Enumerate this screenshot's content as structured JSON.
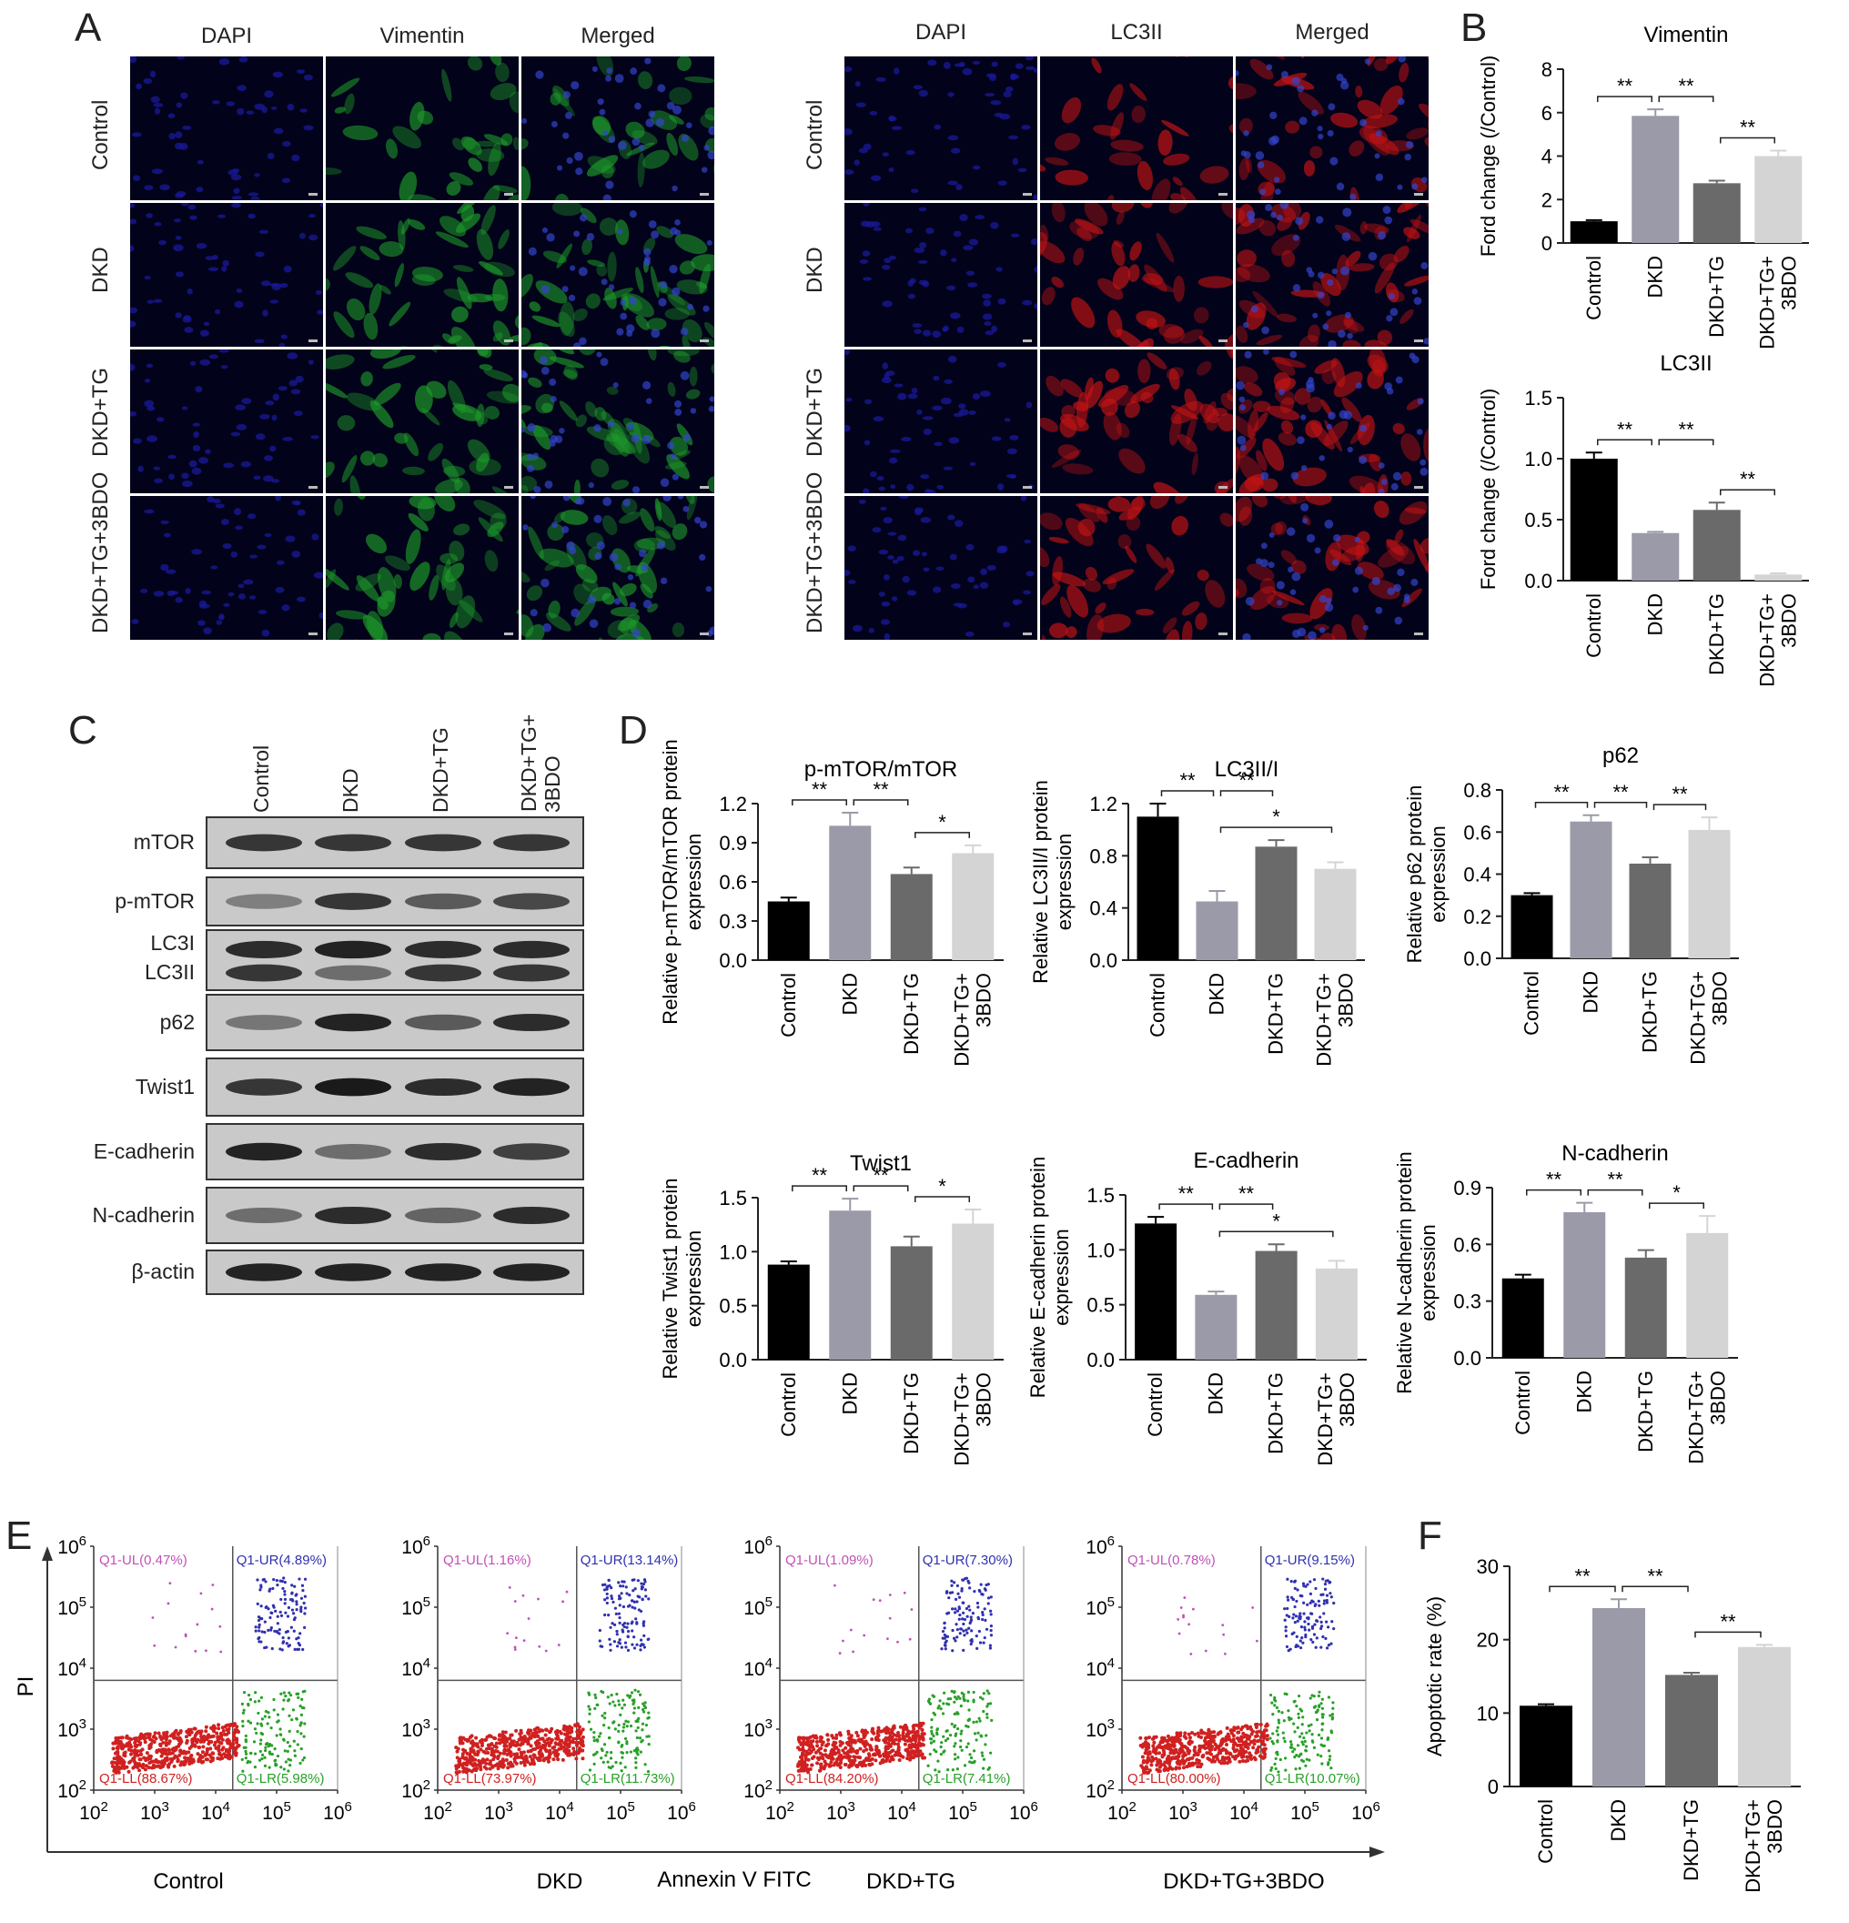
{
  "panels": {
    "A": "A",
    "B": "B",
    "C": "C",
    "D": "D",
    "E": "E",
    "F": "F"
  },
  "panelA": {
    "left_columns": [
      "DAPI",
      "Vimentin",
      "Merged"
    ],
    "right_columns": [
      "DAPI",
      "LC3II",
      "Merged"
    ],
    "rows": [
      "Control",
      "DKD",
      "DKD+TG",
      "DKD+TG+3BDO"
    ],
    "colors": {
      "dapi": "#1a1a9a",
      "vimentin": "#1e9a2a",
      "lc3": "#c41414"
    }
  },
  "panelC": {
    "columns": [
      "Control",
      "DKD",
      "DKD+TG",
      "DKD+TG+\n3BDO"
    ],
    "col_line1": [
      "Control",
      "DKD",
      "DKD+TG",
      "DKD+TG+"
    ],
    "col_line2": [
      "",
      "",
      "",
      "3BDO"
    ],
    "bands": [
      "mTOR",
      "p-mTOR",
      "LC3I",
      "LC3II",
      "p62",
      "Twist1",
      "E-cadherin",
      "N-cadherin",
      "β-actin"
    ]
  },
  "panelE": {
    "plots": [
      {
        "name": "Control",
        "UL": "Q1-UL(0.47%)",
        "UR": "Q1-UR(4.89%)",
        "LL": "Q1-LL(88.67%)",
        "LR": "Q1-LR(5.98%)"
      },
      {
        "name": "DKD",
        "UL": "Q1-UL(1.16%)",
        "UR": "Q1-UR(13.14%)",
        "LL": "Q1-LL(73.97%)",
        "LR": "Q1-LR(11.73%)"
      },
      {
        "name": "DKD+TG",
        "UL": "Q1-UL(1.09%)",
        "UR": "Q1-UR(7.30%)",
        "LL": "Q1-LL(84.20%)",
        "LR": "Q1-LR(7.41%)"
      },
      {
        "name": "DKD+TG+3BDO",
        "UL": "Q1-UL(0.78%)",
        "UR": "Q1-UR(9.15%)",
        "LL": "Q1-LL(80.00%)",
        "LR": "Q1-LR(10.07%)"
      }
    ],
    "ylabel": "PI",
    "xlabel": "Annexin V FITC",
    "tick_base": "10",
    "y_exps": [
      "6",
      "5",
      "4",
      "3",
      "2"
    ],
    "x_exps": [
      "2",
      "3",
      "4",
      "5",
      "6"
    ],
    "colors": {
      "UL": "#c050b8",
      "UR": "#3030b0",
      "LL": "#d02020",
      "LR": "#28a028"
    }
  },
  "chart_data": [
    {
      "id": "B1",
      "type": "bar",
      "title": "Vimentin",
      "ylabel": "Ford change (/Control)",
      "categories": [
        "Control",
        "DKD",
        "DKD+TG",
        "DKD+TG+\n3BDO"
      ],
      "values": [
        1.0,
        5.85,
        2.75,
        4.0
      ],
      "errors": [
        0.05,
        0.3,
        0.12,
        0.25
      ],
      "ylim": [
        0,
        8
      ],
      "yticks": [
        "0",
        "2",
        "4",
        "6",
        "8"
      ],
      "sig": [
        {
          "from": 0,
          "to": 1,
          "label": "**"
        },
        {
          "from": 1,
          "to": 2,
          "label": "**"
        },
        {
          "from": 2,
          "to": 3,
          "label": "**"
        }
      ]
    },
    {
      "id": "B2",
      "type": "bar",
      "title": "LC3II",
      "ylabel": "Ford change (/Control)",
      "categories": [
        "Control",
        "DKD",
        "DKD+TG",
        "DKD+TG+\n3BDO"
      ],
      "values": [
        1.0,
        0.39,
        0.58,
        0.05
      ],
      "errors": [
        0.05,
        0.01,
        0.06,
        0.01
      ],
      "ylim": [
        0,
        1.5
      ],
      "yticks": [
        "0.0",
        "0.5",
        "1.0",
        "1.5"
      ],
      "sig": [
        {
          "from": 0,
          "to": 1,
          "label": "**"
        },
        {
          "from": 1,
          "to": 2,
          "label": "**"
        },
        {
          "from": 2,
          "to": 3,
          "label": "**"
        }
      ]
    },
    {
      "id": "D1",
      "type": "bar",
      "title": "p-mTOR/mTOR",
      "ylabel": "Relative p-mTOR/mTOR protein\nexpression",
      "categories": [
        "Control",
        "DKD",
        "DKD+TG",
        "DKD+TG+\n3BDO"
      ],
      "values": [
        0.45,
        1.03,
        0.66,
        0.82
      ],
      "errors": [
        0.03,
        0.1,
        0.05,
        0.06
      ],
      "ylim": [
        0,
        1.2
      ],
      "yticks": [
        "0.0",
        "0.3",
        "0.6",
        "0.9",
        "1.2"
      ],
      "sig": [
        {
          "from": 0,
          "to": 1,
          "label": "**"
        },
        {
          "from": 1,
          "to": 2,
          "label": "**"
        },
        {
          "from": 2,
          "to": 3,
          "label": "*"
        }
      ]
    },
    {
      "id": "D2",
      "type": "bar",
      "title": "LC3II/I",
      "ylabel": "Relative LC3II/I protein\nexpression",
      "categories": [
        "Control",
        "DKD",
        "DKD+TG",
        "DKD+TG+\n3BDO"
      ],
      "values": [
        1.1,
        0.45,
        0.87,
        0.7
      ],
      "errors": [
        0.1,
        0.08,
        0.05,
        0.05
      ],
      "ylim": [
        0,
        1.2
      ],
      "yticks": [
        "0.0",
        "0.4",
        "0.8",
        "1.2"
      ],
      "sig": [
        {
          "from": 0,
          "to": 1,
          "label": "**"
        },
        {
          "from": 1,
          "to": 2,
          "label": "**"
        },
        {
          "from": 1,
          "to": 3,
          "label": "*"
        }
      ]
    },
    {
      "id": "D3",
      "type": "bar",
      "title": "p62",
      "ylabel": "Relative p62 protein\nexpression",
      "categories": [
        "Control",
        "DKD",
        "DKD+TG",
        "DKD+TG+\n3BDO"
      ],
      "values": [
        0.3,
        0.65,
        0.45,
        0.61
      ],
      "errors": [
        0.01,
        0.03,
        0.03,
        0.06
      ],
      "ylim": [
        0,
        0.8
      ],
      "yticks": [
        "0.0",
        "0.2",
        "0.4",
        "0.6",
        "0.8"
      ],
      "sig": [
        {
          "from": 0,
          "to": 1,
          "label": "**"
        },
        {
          "from": 1,
          "to": 2,
          "label": "**"
        },
        {
          "from": 2,
          "to": 3,
          "label": "**"
        }
      ]
    },
    {
      "id": "D4",
      "type": "bar",
      "title": "Twist1",
      "ylabel": "Relative Twist1 protein\nexpression",
      "categories": [
        "Control",
        "DKD",
        "DKD+TG",
        "DKD+TG+\n3BDO"
      ],
      "values": [
        0.88,
        1.38,
        1.05,
        1.26
      ],
      "errors": [
        0.03,
        0.11,
        0.09,
        0.13
      ],
      "ylim": [
        0,
        1.5
      ],
      "yticks": [
        "0.0",
        "0.5",
        "1.0",
        "1.5"
      ],
      "sig": [
        {
          "from": 0,
          "to": 1,
          "label": "**"
        },
        {
          "from": 1,
          "to": 2,
          "label": "**"
        },
        {
          "from": 2,
          "to": 3,
          "label": "*"
        }
      ]
    },
    {
      "id": "D5",
      "type": "bar",
      "title": "E-cadherin",
      "ylabel": "Relative E-cadherin protein\nexpression",
      "categories": [
        "Control",
        "DKD",
        "DKD+TG",
        "DKD+TG+\n3BDO"
      ],
      "values": [
        1.24,
        0.59,
        0.99,
        0.83
      ],
      "errors": [
        0.06,
        0.03,
        0.06,
        0.07
      ],
      "ylim": [
        0,
        1.5
      ],
      "yticks": [
        "0.0",
        "0.5",
        "1.0",
        "1.5"
      ],
      "sig": [
        {
          "from": 0,
          "to": 1,
          "label": "**"
        },
        {
          "from": 1,
          "to": 2,
          "label": "**"
        },
        {
          "from": 1,
          "to": 3,
          "label": "*"
        }
      ]
    },
    {
      "id": "D6",
      "type": "bar",
      "title": "N-cadherin",
      "ylabel": "Relative N-cadherin protein\nexpression",
      "categories": [
        "Control",
        "DKD",
        "DKD+TG",
        "DKD+TG+\n3BDO"
      ],
      "values": [
        0.42,
        0.77,
        0.53,
        0.66
      ],
      "errors": [
        0.02,
        0.05,
        0.04,
        0.09
      ],
      "ylim": [
        0,
        0.9
      ],
      "yticks": [
        "0.0",
        "0.3",
        "0.6",
        "0.9"
      ],
      "sig": [
        {
          "from": 0,
          "to": 1,
          "label": "**"
        },
        {
          "from": 1,
          "to": 2,
          "label": "**"
        },
        {
          "from": 2,
          "to": 3,
          "label": "*"
        }
      ]
    },
    {
      "id": "F",
      "type": "bar",
      "title": "",
      "ylabel": "Apoptotic rate (%)",
      "categories": [
        "Control",
        "DKD",
        "DKD+TG",
        "DKD+TG+\n3BDO"
      ],
      "values": [
        11.0,
        24.3,
        15.2,
        19.0
      ],
      "errors": [
        0.2,
        1.2,
        0.3,
        0.3
      ],
      "ylim": [
        0,
        30
      ],
      "yticks": [
        "0",
        "10",
        "20",
        "30"
      ],
      "sig": [
        {
          "from": 0,
          "to": 1,
          "label": "**"
        },
        {
          "from": 1,
          "to": 2,
          "label": "**"
        },
        {
          "from": 2,
          "to": 3,
          "label": "**"
        }
      ]
    }
  ]
}
